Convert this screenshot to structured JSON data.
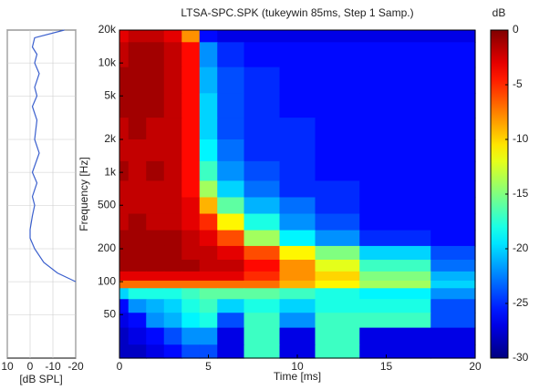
{
  "chart_data": [
    {
      "type": "line",
      "orientation": "horizontal",
      "xlabel": "[dB SPL]",
      "xlim": [
        10,
        -20
      ],
      "xticks": [
        10,
        0,
        -10,
        -20
      ],
      "ylim": [
        20,
        20000
      ],
      "log_y": true,
      "grid": true,
      "color": "#3a5fcd",
      "frequencies": [
        20000,
        17000,
        14000,
        12000,
        10000,
        8000,
        6000,
        5000,
        4000,
        3000,
        2000,
        1500,
        1000,
        800,
        600,
        500,
        400,
        300,
        250,
        200,
        150,
        120,
        100
      ],
      "values": [
        -15,
        -2,
        -1,
        -3,
        -2,
        -4,
        -2,
        -3,
        -1,
        -3,
        -2,
        -4,
        -1,
        -3,
        -1,
        -2,
        -1,
        0,
        0,
        -2,
        -6,
        -12,
        -20
      ]
    },
    {
      "type": "heatmap",
      "title": "LTSA-SPC.SPK (tukeywin 85ms, Step 1 Samp.)",
      "xlabel": "Time [ms]",
      "ylabel": "Frequency [Hz]",
      "xlim": [
        0,
        20
      ],
      "xticks": [
        0,
        5,
        10,
        15,
        20
      ],
      "ylim": [
        20,
        20000
      ],
      "log_y": true,
      "yticks": [
        {
          "value": 20000,
          "label": "20k"
        },
        {
          "value": 10000,
          "label": "10k"
        },
        {
          "value": 5000,
          "label": "5k"
        },
        {
          "value": 2000,
          "label": "2k"
        },
        {
          "value": 1000,
          "label": "1k"
        },
        500,
        200,
        100,
        50
      ],
      "colormap": "jet",
      "clim": [
        -30,
        0
      ],
      "colorbar_label": "dB",
      "colorbar_ticks": [
        0,
        -5,
        -10,
        -15,
        -20,
        -25,
        -30
      ],
      "x": [
        0,
        1,
        2,
        3,
        4,
        5,
        6,
        8,
        10,
        12,
        15,
        20
      ],
      "y": [
        20000,
        12000,
        7000,
        4000,
        2500,
        1600,
        1000,
        700,
        500,
        350,
        250,
        180,
        140,
        110,
        95,
        80,
        60,
        45,
        32,
        22
      ],
      "z": [
        [
          -3,
          -2,
          -2,
          -3,
          -8,
          -26,
          -27,
          -27,
          -27,
          -27,
          -27,
          -27
        ],
        [
          -2,
          -1,
          -1,
          -2,
          -4,
          -22,
          -25,
          -26,
          -26,
          -26,
          -26,
          -26
        ],
        [
          -1,
          -1,
          -1,
          -2,
          -4,
          -21,
          -24,
          -25,
          -26,
          -26,
          -26,
          -26
        ],
        [
          -1,
          -1,
          -1,
          -2,
          -4,
          -20,
          -24,
          -25,
          -26,
          -26,
          -26,
          -26
        ],
        [
          -2,
          -1,
          -2,
          -2,
          -4,
          -20,
          -24,
          -25,
          -25,
          -26,
          -26,
          -26
        ],
        [
          -2,
          -2,
          -2,
          -2,
          -4,
          -19,
          -23,
          -25,
          -25,
          -26,
          -26,
          -26
        ],
        [
          -1,
          -2,
          -1,
          -2,
          -4,
          -17,
          -22,
          -24,
          -25,
          -26,
          -26,
          -26
        ],
        [
          -2,
          -2,
          -2,
          -2,
          -4,
          -14,
          -20,
          -23,
          -25,
          -25,
          -26,
          -26
        ],
        [
          -2,
          -2,
          -2,
          -2,
          -3,
          -9,
          -16,
          -21,
          -23,
          -25,
          -26,
          -26
        ],
        [
          -2,
          -1,
          -2,
          -2,
          -3,
          -5,
          -11,
          -18,
          -22,
          -24,
          -26,
          -26
        ],
        [
          -1,
          -1,
          -1,
          -1,
          -2,
          -3,
          -6,
          -14,
          -19,
          -22,
          -25,
          -26
        ],
        [
          -1,
          -1,
          -1,
          -1,
          -2,
          -2,
          -3,
          -6,
          -11,
          -15,
          -20,
          -24
        ],
        [
          -1,
          -1,
          -1,
          -1,
          -1,
          -2,
          -2,
          -4,
          -8,
          -12,
          -17,
          -23
        ],
        [
          -3,
          -3,
          -3,
          -3,
          -3,
          -3,
          -3,
          -5,
          -8,
          -10,
          -15,
          -21
        ],
        [
          -7,
          -7,
          -7,
          -7,
          -7,
          -7,
          -7,
          -7,
          -9,
          -11,
          -14,
          -20
        ],
        [
          -20,
          -18,
          -18,
          -18,
          -17,
          -16,
          -16,
          -16,
          -17,
          -18,
          -19,
          -22
        ],
        [
          -26,
          -22,
          -21,
          -20,
          -18,
          -17,
          -20,
          -18,
          -20,
          -18,
          -18,
          -24
        ],
        [
          -27,
          -26,
          -22,
          -21,
          -19,
          -18,
          -24,
          -17,
          -22,
          -17,
          -17,
          -24
        ],
        [
          -28,
          -27,
          -26,
          -24,
          -22,
          -22,
          -27,
          -17,
          -27,
          -17,
          -27,
          -27
        ],
        [
          -28,
          -28,
          -27,
          -26,
          -24,
          -24,
          -27,
          -17,
          -27,
          -17,
          -27,
          -27
        ]
      ]
    }
  ]
}
